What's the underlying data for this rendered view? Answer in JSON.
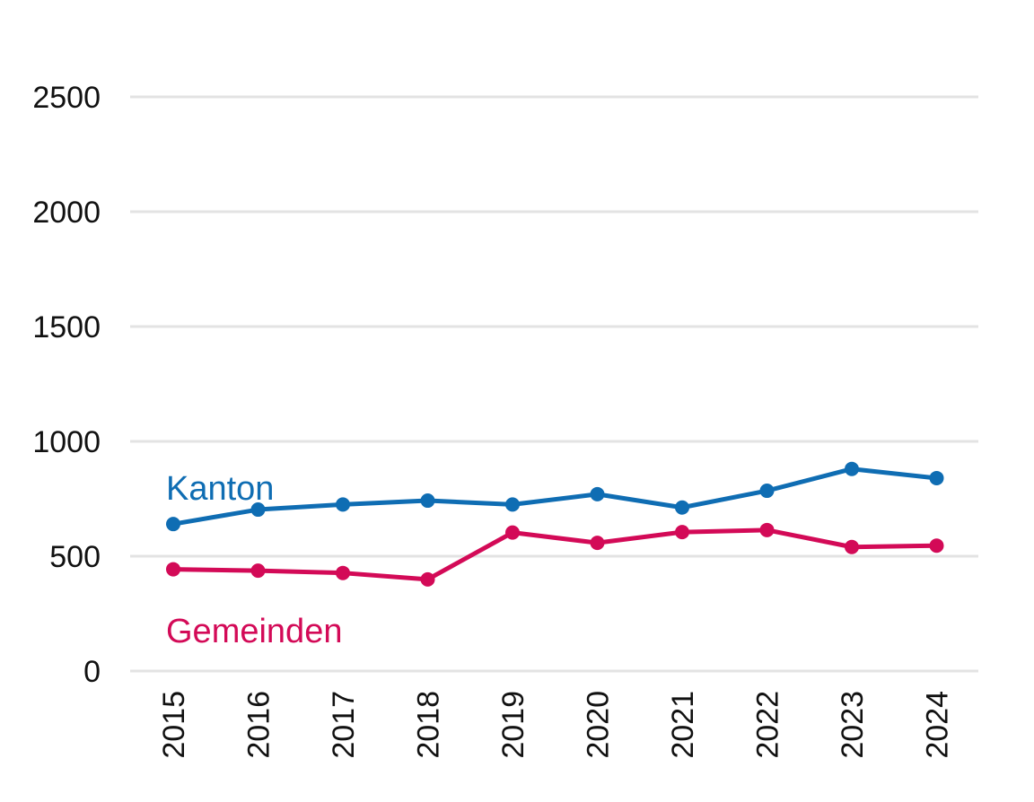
{
  "chart_data": {
    "type": "line",
    "title": "",
    "xlabel": "",
    "ylabel": "",
    "categories": [
      "2015",
      "2016",
      "2017",
      "2018",
      "2019",
      "2020",
      "2021",
      "2022",
      "2023",
      "2024"
    ],
    "ylim": [
      0,
      2500
    ],
    "yticks": [
      0,
      500,
      1000,
      1500,
      2000,
      2500
    ],
    "grid": true,
    "legend": "inline labels",
    "series": [
      {
        "name": "Kanton",
        "color": "#0f6db3",
        "values": [
          640,
          703,
          725,
          742,
          725,
          770,
          712,
          785,
          880,
          840
        ]
      },
      {
        "name": "Gemeinden",
        "color": "#d30a57",
        "values": [
          443,
          437,
          427,
          399,
          603,
          558,
          605,
          614,
          540,
          546
        ]
      }
    ]
  }
}
